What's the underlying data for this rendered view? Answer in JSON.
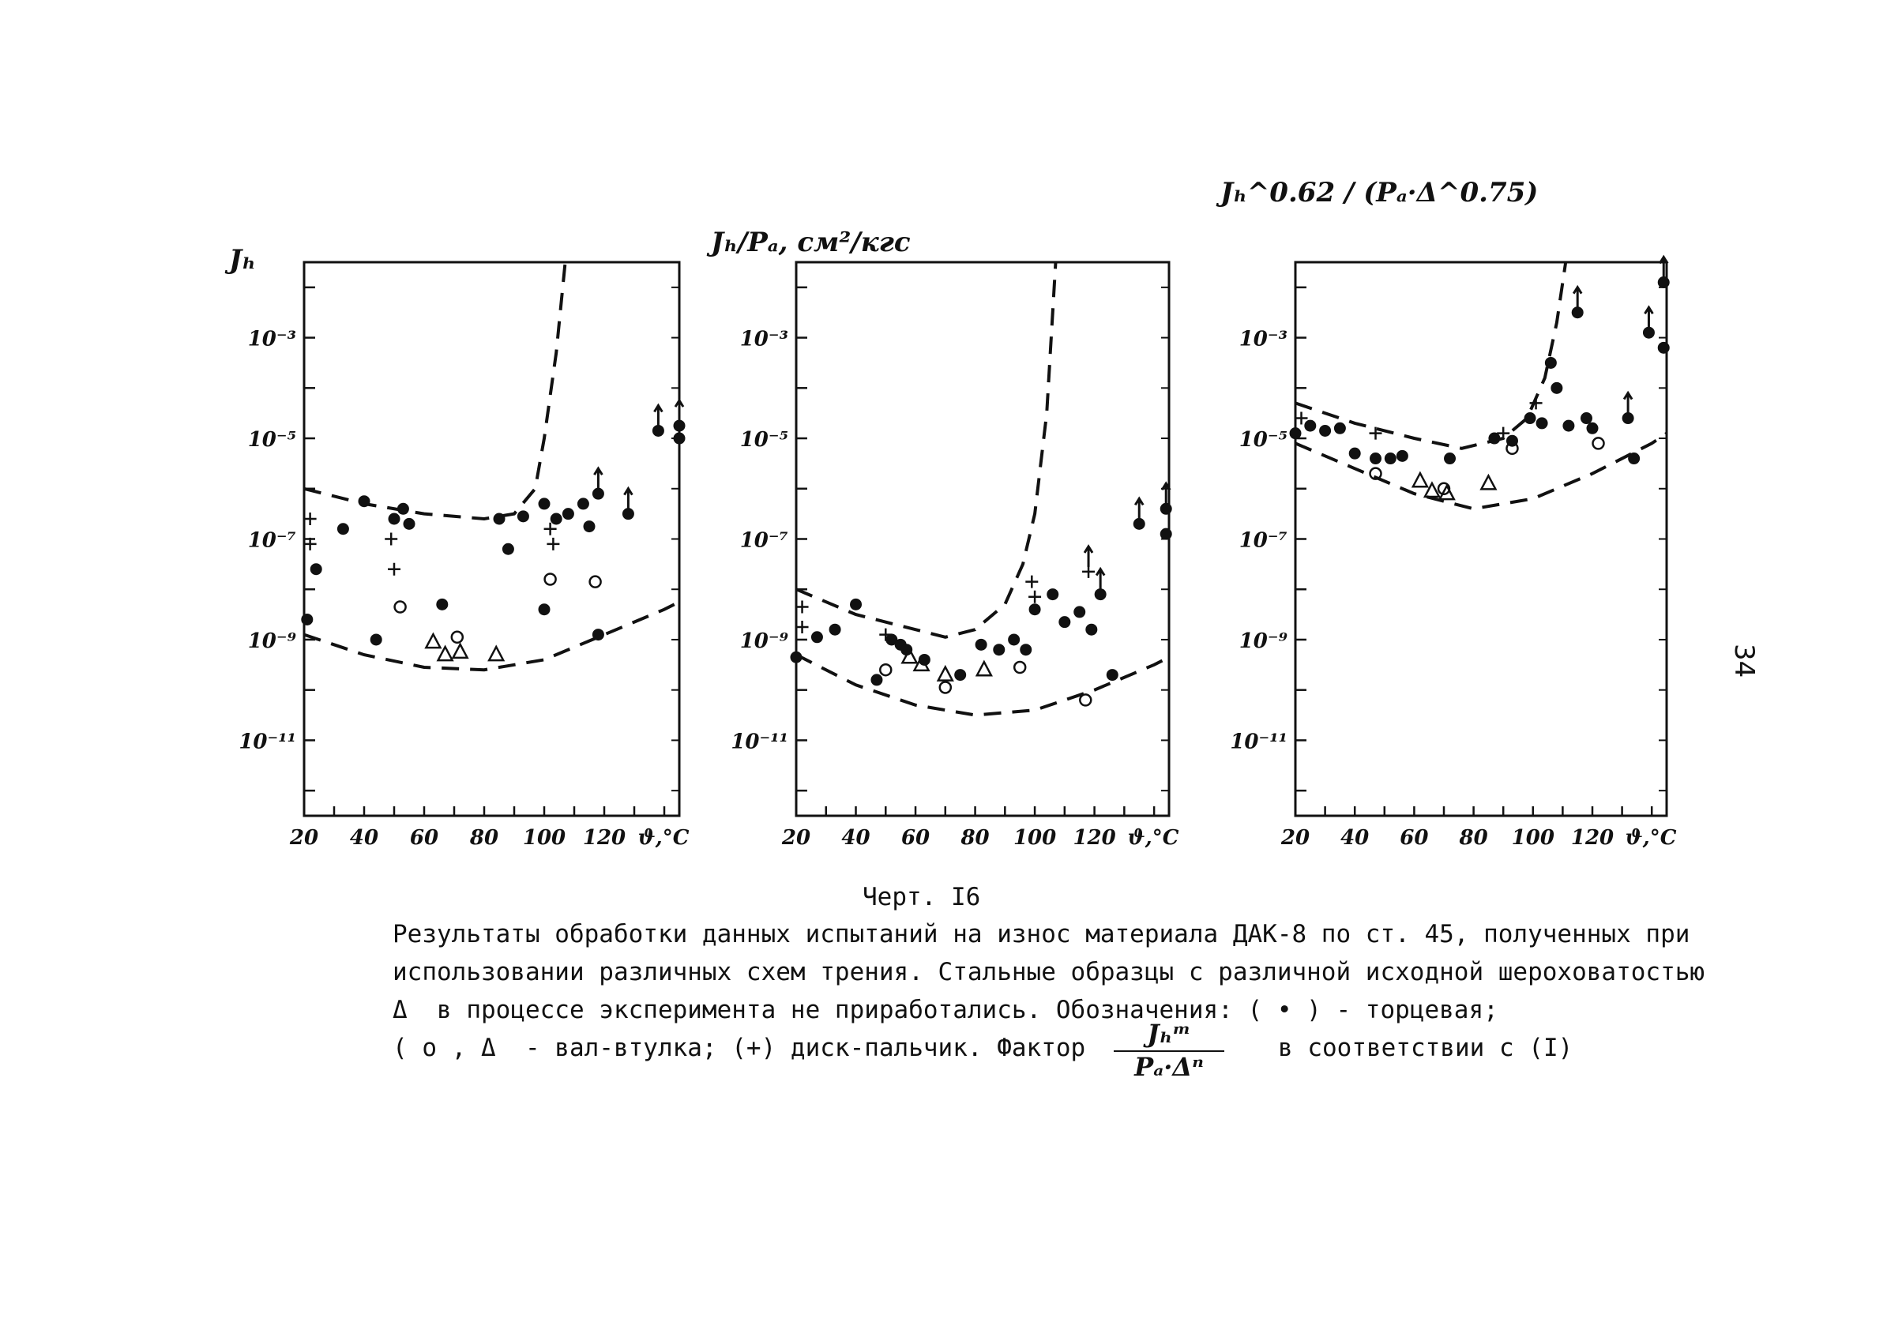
{
  "figure_label": "Черт. I6",
  "caption_lines": [
    "Результаты обработки данных испытаний на износ материала ДАК-8 по ст. 45, полученных при",
    "использовании различных схем трения. Стальные образцы с различной исходной шероховатостью",
    "Δ  в процессе эксперимента не приработались. Обозначения: ( • ) - торцевая;",
    "( o , Δ  - вал-втулка; (+) диск-пальчик. Фактор",
    "в соответствии с (I)"
  ],
  "factor_formula": {
    "numerator": "Jₕᵐ",
    "denominator": "Pₐ·Δⁿ"
  },
  "page_number": "34",
  "chart_data": [
    {
      "type": "scatter",
      "ylabel": "Jₕ",
      "xlabel": "ϑ,°C",
      "yscale": "log",
      "y_tick_labels": [
        "10⁻³",
        "10⁻⁵",
        "10⁻⁷",
        "10⁻⁹",
        "10⁻¹¹"
      ],
      "y_tick_values": [
        0.001,
        1e-05,
        1e-07,
        1e-09,
        1e-11
      ],
      "x_tick_labels": [
        "20",
        "40",
        "60",
        "80",
        "100",
        "120"
      ],
      "x_tick_values": [
        20,
        40,
        60,
        80,
        100,
        120
      ],
      "xlim": [
        20,
        145
      ],
      "ylim_exp": [
        -12.5,
        -1.5
      ],
      "series": [
        {
          "marker": "dot",
          "points": [
            [
              21,
              -8.6
            ],
            [
              24,
              -7.6
            ],
            [
              33,
              -6.8
            ],
            [
              40,
              -6.25
            ],
            [
              44,
              -9.0
            ],
            [
              50,
              -6.6
            ],
            [
              53,
              -6.4
            ],
            [
              55,
              -6.7
            ],
            [
              66,
              -8.3
            ],
            [
              85,
              -6.6
            ],
            [
              88,
              -7.2
            ],
            [
              93,
              -6.55
            ],
            [
              100,
              -6.3
            ],
            [
              100,
              -8.4
            ],
            [
              104,
              -6.6
            ],
            [
              108,
              -6.5
            ],
            [
              113,
              -6.3
            ],
            [
              115,
              -6.75
            ],
            [
              118,
              -8.9
            ],
            [
              118,
              -6.1
            ],
            [
              128,
              -6.5
            ],
            [
              138,
              -4.85
            ],
            [
              145,
              -4.75
            ],
            [
              145,
              -5.0
            ]
          ]
        },
        {
          "marker": "plus",
          "points": [
            [
              22,
              -6.6
            ],
            [
              22,
              -7.1
            ],
            [
              49,
              -7.0
            ],
            [
              50,
              -7.6
            ],
            [
              102,
              -6.8
            ],
            [
              103,
              -7.1
            ]
          ]
        },
        {
          "marker": "circle",
          "points": [
            [
              52,
              -8.35
            ],
            [
              71,
              -8.95
            ],
            [
              102,
              -7.8
            ],
            [
              117,
              -7.85
            ]
          ]
        },
        {
          "marker": "triangle",
          "points": [
            [
              63,
              -9.05
            ],
            [
              67,
              -9.3
            ],
            [
              72,
              -9.25
            ],
            [
              84,
              -9.3
            ]
          ]
        },
        {
          "marker": "arrow-up",
          "points": [
            [
              138,
              -4.85
            ],
            [
              145,
              -4.75
            ],
            [
              128,
              -6.5
            ],
            [
              118,
              -6.1
            ]
          ]
        }
      ],
      "curves": [
        {
          "name": "upper",
          "points": [
            [
              20,
              -6.0
            ],
            [
              40,
              -6.3
            ],
            [
              60,
              -6.5
            ],
            [
              80,
              -6.6
            ],
            [
              90,
              -6.5
            ],
            [
              97,
              -6.0
            ],
            [
              100,
              -5.0
            ],
            [
              104,
              -3.3
            ],
            [
              107,
              -1.5
            ]
          ]
        },
        {
          "name": "lower",
          "points": [
            [
              20,
              -8.9
            ],
            [
              40,
              -9.3
            ],
            [
              60,
              -9.55
            ],
            [
              80,
              -9.6
            ],
            [
              100,
              -9.4
            ],
            [
              120,
              -8.9
            ],
            [
              140,
              -8.4
            ],
            [
              145,
              -8.25
            ]
          ]
        }
      ]
    },
    {
      "type": "scatter",
      "ylabel": "Jₕ/Pₐ, см²/кгс",
      "xlabel": "ϑ,°C",
      "yscale": "log",
      "y_tick_labels": [
        "10⁻³",
        "10⁻⁵",
        "10⁻⁷",
        "10⁻⁹",
        "10⁻¹¹"
      ],
      "y_tick_values": [
        0.001,
        1e-05,
        1e-07,
        1e-09,
        1e-11
      ],
      "x_tick_labels": [
        "20",
        "40",
        "60",
        "80",
        "100",
        "120"
      ],
      "x_tick_values": [
        20,
        40,
        60,
        80,
        100,
        120
      ],
      "xlim": [
        20,
        145
      ],
      "ylim_exp": [
        -12.5,
        -1.5
      ],
      "series": [
        {
          "marker": "dot",
          "points": [
            [
              20,
              -9.35
            ],
            [
              27,
              -8.95
            ],
            [
              33,
              -8.8
            ],
            [
              40,
              -8.3
            ],
            [
              47,
              -9.8
            ],
            [
              52,
              -9.0
            ],
            [
              55,
              -9.1
            ],
            [
              57,
              -9.2
            ],
            [
              63,
              -9.4
            ],
            [
              75,
              -9.7
            ],
            [
              82,
              -9.1
            ],
            [
              88,
              -9.2
            ],
            [
              93,
              -9.0
            ],
            [
              97,
              -9.2
            ],
            [
              100,
              -8.4
            ],
            [
              106,
              -8.1
            ],
            [
              110,
              -8.65
            ],
            [
              115,
              -8.45
            ],
            [
              119,
              -8.8
            ],
            [
              122,
              -8.1
            ],
            [
              126,
              -9.7
            ],
            [
              135,
              -6.7
            ],
            [
              144,
              -6.4
            ],
            [
              144,
              -6.9
            ]
          ]
        },
        {
          "marker": "plus",
          "points": [
            [
              22,
              -8.35
            ],
            [
              22,
              -8.75
            ],
            [
              50,
              -8.9
            ],
            [
              99,
              -7.85
            ],
            [
              100,
              -8.15
            ],
            [
              118,
              -7.65
            ]
          ]
        },
        {
          "marker": "circle",
          "points": [
            [
              50,
              -9.6
            ],
            [
              70,
              -9.95
            ],
            [
              95,
              -9.55
            ],
            [
              117,
              -10.2
            ]
          ]
        },
        {
          "marker": "triangle",
          "points": [
            [
              58,
              -9.35
            ],
            [
              62,
              -9.5
            ],
            [
              70,
              -9.7
            ],
            [
              83,
              -9.6
            ]
          ]
        },
        {
          "marker": "arrow-up",
          "points": [
            [
              144,
              -6.4
            ],
            [
              135,
              -6.7
            ],
            [
              122,
              -8.1
            ],
            [
              118,
              -7.65
            ]
          ]
        }
      ],
      "curves": [
        {
          "name": "upper",
          "points": [
            [
              20,
              -8.0
            ],
            [
              40,
              -8.5
            ],
            [
              60,
              -8.8
            ],
            [
              70,
              -8.95
            ],
            [
              80,
              -8.8
            ],
            [
              90,
              -8.3
            ],
            [
              96,
              -7.5
            ],
            [
              100,
              -6.5
            ],
            [
              104,
              -4.5
            ],
            [
              107,
              -1.5
            ]
          ]
        },
        {
          "name": "lower",
          "points": [
            [
              20,
              -9.3
            ],
            [
              40,
              -9.9
            ],
            [
              60,
              -10.3
            ],
            [
              80,
              -10.5
            ],
            [
              100,
              -10.4
            ],
            [
              120,
              -10.0
            ],
            [
              140,
              -9.5
            ],
            [
              145,
              -9.35
            ]
          ]
        }
      ]
    },
    {
      "type": "scatter",
      "ylabel": "Jₕ^0.62 / (Pₐ·Δ^0.75)",
      "xlabel": "ϑ,°C",
      "yscale": "log",
      "y_tick_labels": [
        "10⁻³",
        "10⁻⁵",
        "10⁻⁷",
        "10⁻⁹",
        "10⁻¹¹"
      ],
      "y_tick_values": [
        0.001,
        1e-05,
        1e-07,
        1e-09,
        1e-11
      ],
      "x_tick_labels": [
        "20",
        "40",
        "60",
        "80",
        "100",
        "120"
      ],
      "x_tick_values": [
        20,
        40,
        60,
        80,
        100,
        120
      ],
      "xlim": [
        20,
        145
      ],
      "ylim_exp": [
        -12.5,
        -1.5
      ],
      "series": [
        {
          "marker": "dot",
          "points": [
            [
              20,
              -4.9
            ],
            [
              25,
              -4.75
            ],
            [
              30,
              -4.85
            ],
            [
              35,
              -4.8
            ],
            [
              40,
              -5.3
            ],
            [
              47,
              -5.4
            ],
            [
              52,
              -5.4
            ],
            [
              56,
              -5.35
            ],
            [
              72,
              -5.4
            ],
            [
              87,
              -5.0
            ],
            [
              93,
              -5.05
            ],
            [
              99,
              -4.6
            ],
            [
              103,
              -4.7
            ],
            [
              106,
              -3.5
            ],
            [
              108,
              -4.0
            ],
            [
              112,
              -4.75
            ],
            [
              115,
              -2.5
            ],
            [
              118,
              -4.6
            ],
            [
              120,
              -4.8
            ],
            [
              132,
              -4.6
            ],
            [
              134,
              -5.4
            ],
            [
              139,
              -2.9
            ],
            [
              144,
              -1.9
            ],
            [
              144,
              -3.2
            ]
          ]
        },
        {
          "marker": "plus",
          "points": [
            [
              22,
              -4.6
            ],
            [
              47,
              -4.9
            ],
            [
              90,
              -4.9
            ],
            [
              101,
              -4.3
            ]
          ]
        },
        {
          "marker": "circle",
          "points": [
            [
              47,
              -5.7
            ],
            [
              70,
              -6.0
            ],
            [
              93,
              -5.2
            ],
            [
              122,
              -5.1
            ]
          ]
        },
        {
          "marker": "triangle",
          "points": [
            [
              62,
              -5.85
            ],
            [
              66,
              -6.05
            ],
            [
              71,
              -6.1
            ],
            [
              85,
              -5.9
            ]
          ]
        },
        {
          "marker": "arrow-up",
          "points": [
            [
              115,
              -2.5
            ],
            [
              139,
              -2.9
            ],
            [
              144,
              -1.9
            ],
            [
              132,
              -4.6
            ]
          ]
        }
      ],
      "curves": [
        {
          "name": "upper",
          "points": [
            [
              20,
              -4.3
            ],
            [
              40,
              -4.7
            ],
            [
              60,
              -5.0
            ],
            [
              76,
              -5.2
            ],
            [
              90,
              -5.0
            ],
            [
              98,
              -4.6
            ],
            [
              104,
              -3.8
            ],
            [
              108,
              -2.7
            ],
            [
              111,
              -1.5
            ]
          ]
        },
        {
          "name": "lower",
          "points": [
            [
              20,
              -5.1
            ],
            [
              40,
              -5.6
            ],
            [
              60,
              -6.1
            ],
            [
              80,
              -6.4
            ],
            [
              100,
              -6.2
            ],
            [
              120,
              -5.7
            ],
            [
              140,
              -5.1
            ],
            [
              145,
              -4.9
            ]
          ]
        }
      ]
    }
  ]
}
